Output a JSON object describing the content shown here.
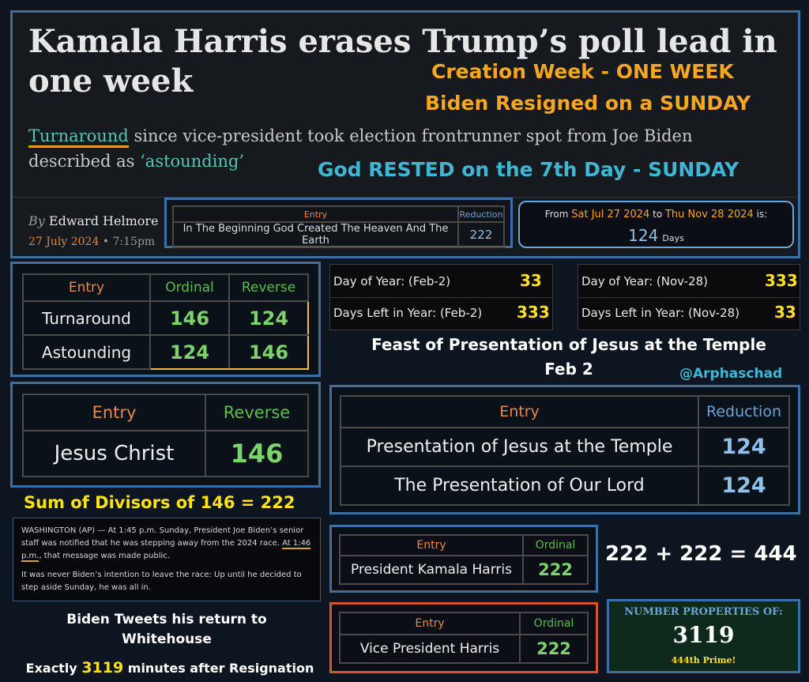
{
  "article": {
    "headline": "Kamala Harris erases Trump’s poll lead in one week",
    "subhead_turnaround": "Turnaround",
    "subhead_rest": " since vice-president took election frontrunner spot from Joe Biden described as ",
    "subhead_astounding": "‘astounding’",
    "byline_by": "By",
    "byline_author": "Edward Helmore",
    "byline_date": "27 July 2024",
    "byline_time": " • 7:15pm"
  },
  "overlay": {
    "line1": "Creation Week - ONE WEEK",
    "line2": "Biden Resigned on a SUNDAY",
    "line3": "God RESTED on the 7th Day - SUNDAY"
  },
  "genesis_table": {
    "h_entry": "Entry",
    "h_reduction": "Reduction",
    "entry": "In The Beginning God Created The Heaven And The Earth",
    "value": "222"
  },
  "date_calc": {
    "from_label": "From ",
    "from_date": "Sat Jul 27 2024",
    "to_label": " to ",
    "to_date": "Thu Nov 28 2024",
    "is_label": " is:",
    "value": "124",
    "unit": "Days"
  },
  "turnaround_table": {
    "h_entry": "Entry",
    "h_ordinal": "Ordinal",
    "h_reverse": "Reverse",
    "rows": [
      {
        "entry": "Turnaround",
        "ordinal": "146",
        "reverse": "124"
      },
      {
        "entry": "Astounding",
        "ordinal": "124",
        "reverse": "146"
      }
    ]
  },
  "day_of_year": {
    "rows": [
      {
        "l1": "Day of Year: (Feb-2)",
        "v1": "33",
        "l2": "Day of Year: (Nov-28)",
        "v2": "333"
      },
      {
        "l1": "Days Left in Year: (Feb-2)",
        "v1": "333",
        "l2": "Days Left in Year: (Nov-28)",
        "v2": "33"
      }
    ]
  },
  "feast": {
    "line1": "Feast of Presentation of Jesus at the Temple",
    "line2": "Feb 2",
    "handle": "@Arphaschad"
  },
  "jesus_table": {
    "h_entry": "Entry",
    "h_reverse": "Reverse",
    "entry": "Jesus Christ",
    "value": "146"
  },
  "presentation_table": {
    "h_entry": "Entry",
    "h_reduction": "Reduction",
    "rows": [
      {
        "entry": "Presentation of Jesus at the Temple",
        "value": "124"
      },
      {
        "entry": "The Presentation of Our Lord",
        "value": "124"
      }
    ]
  },
  "divisors": "Sum of Divisors of 146 = 222",
  "news": {
    "p1_a": "WASHINGTON (AP) — At 1:45 p.m. Sunday, President Joe Biden’s senior staff was notified that he was stepping away from the 2024 race. ",
    "p1_hl": "At 1:46 p.m.",
    "p1_b": ", that message was made public.",
    "p2": "It was never Biden’s intention to leave the race: Up until he decided to step aside Sunday, he was all in."
  },
  "kamala_table": {
    "h_entry": "Entry",
    "h_ordinal": "Ordinal",
    "entry": "President Kamala Harris",
    "value": "222"
  },
  "vp_table": {
    "h_entry": "Entry",
    "h_ordinal": "Ordinal",
    "entry": "Vice President Harris",
    "value": "222"
  },
  "sum": "222 + 222 = 444",
  "tweet": {
    "line1": "Biden Tweets his return to",
    "line2": "Whitehouse",
    "line3_a": "Exactly ",
    "line3_num": "3119",
    "line3_b": " minutes after  Resignation"
  },
  "number_props": {
    "title": "NUMBER PROPERTIES OF:",
    "number": "3119",
    "note": "444th Prime!"
  },
  "colors": {
    "panel_border": "#3e6fa3",
    "orange": "#f5a623",
    "cyan": "#3fb6d3",
    "yellow": "#ffe11a",
    "green": "#7bd36b"
  }
}
